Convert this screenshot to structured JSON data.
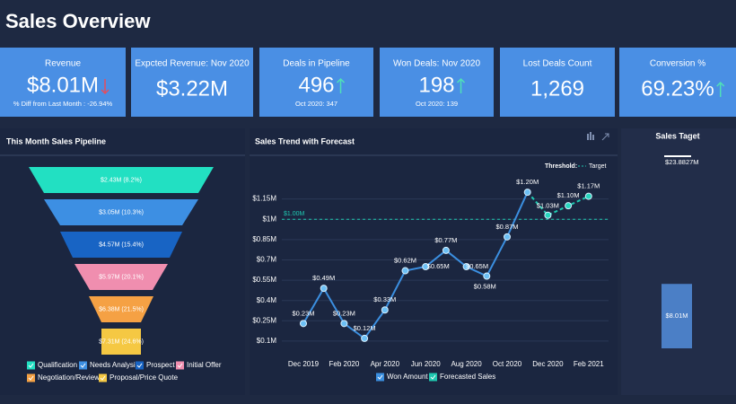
{
  "header": {
    "title": "Sales Overview"
  },
  "kpis": [
    {
      "title": "Revenue",
      "value": "$8.01M",
      "trend": "down",
      "note": "% Diff from Last Month : -26.94%"
    },
    {
      "title": "Expcted Revenue: Nov 2020",
      "value": "$3.22M"
    },
    {
      "title": "Deals in Pipeline",
      "value": "496",
      "trend": "up",
      "note": "Oct 2020: 347"
    },
    {
      "title": "Won Deals: Nov 2020",
      "value": "198",
      "trend": "up",
      "note": "Oct 2020: 139"
    },
    {
      "title": "Lost Deals Count",
      "value": "1,269"
    },
    {
      "title": "Conversion %",
      "value": "69.23%",
      "trend": "up"
    }
  ],
  "chart_data": [
    {
      "type": "funnel",
      "title": "This Month Sales Pipeline",
      "categories": [
        "Qualification",
        "Needs Analysis",
        "Prospect",
        "Initial Offer",
        "Negotiation/Review",
        "Proposal/Price Quote"
      ],
      "values": [
        2.43,
        3.05,
        4.57,
        5.97,
        6.38,
        7.31
      ],
      "value_labels": [
        "$2.43M (8.2%)",
        "$3.05M (10.3%)",
        "$4.57M (15.4%)",
        "$5.97M (20.1%)",
        "$6.38M (21.5%)",
        "$7.31M (24.6%)"
      ],
      "colors": [
        "#22e0c2",
        "#3d8fe3",
        "#1864c4",
        "#f08eaf",
        "#f5a144",
        "#f5c843"
      ]
    },
    {
      "type": "line",
      "title": "Sales Trend with Forecast",
      "categories": [
        "Dec 2019",
        null,
        "Feb 2020",
        null,
        "Apr 2020",
        null,
        "Jun 2020",
        null,
        "Aug 2020",
        null,
        "Oct 2020",
        null,
        "Dec 2020",
        null,
        "Feb 2021"
      ],
      "series": [
        {
          "name": "Won Amount",
          "color": "#3b8fe0",
          "values": [
            0.23,
            0.49,
            0.23,
            0.12,
            0.33,
            0.62,
            0.65,
            0.77,
            0.65,
            0.58,
            0.87,
            1.2,
            null,
            null,
            null
          ],
          "value_labels": [
            "$0.23M",
            "$0.49M",
            "$0.23M",
            "$0.12M",
            "$0.33M",
            "$0.62M",
            "$0.65M",
            "$0.77M",
            "$0.65M",
            "$0.58M",
            "$0.87M",
            "$1.20M",
            null,
            null,
            null
          ]
        },
        {
          "name": "Forecasted Sales",
          "color": "#1fc8b0",
          "dashed": true,
          "values": [
            null,
            null,
            null,
            null,
            null,
            null,
            null,
            null,
            null,
            null,
            null,
            1.2,
            1.03,
            1.1,
            1.17
          ],
          "value_labels": [
            null,
            null,
            null,
            null,
            null,
            null,
            null,
            null,
            null,
            null,
            null,
            null,
            "$1.03M",
            "$1.10M",
            "$1.17M"
          ]
        }
      ],
      "ylim": [
        0,
        1.3
      ],
      "yticks": [
        {
          "value": 0.1,
          "label": "$0.1M"
        },
        {
          "value": 0.25,
          "label": "$0.25M"
        },
        {
          "value": 0.4,
          "label": "$0.4M"
        },
        {
          "value": 0.55,
          "label": "$0.55M"
        },
        {
          "value": 0.7,
          "label": "$0.7M"
        },
        {
          "value": 0.85,
          "label": "$0.85M"
        },
        {
          "value": 1,
          "label": "$1M"
        },
        {
          "value": 1.15,
          "label": "$1.15M"
        }
      ],
      "threshold": {
        "title": "Threshold:",
        "name": "Target",
        "value": 1,
        "label": "$1.00M"
      }
    },
    {
      "type": "bar",
      "title": "Sales Taget",
      "values": [
        8.01
      ],
      "value_labels": [
        "$8.01M"
      ],
      "color": "#4b7fc6",
      "target": {
        "value": 23.8827,
        "label": "$23.8827M"
      },
      "ylim": [
        0,
        25
      ]
    }
  ]
}
